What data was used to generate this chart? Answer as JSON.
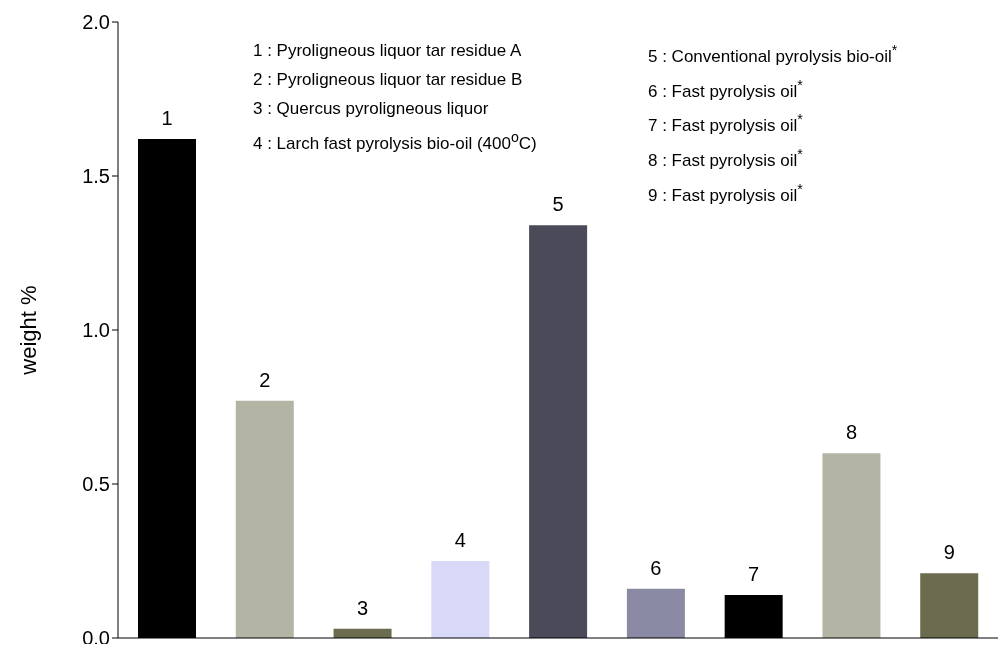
{
  "chart_data": {
    "type": "bar",
    "ylabel": "weight %",
    "categories": [
      "1",
      "2",
      "3",
      "4",
      "5",
      "6",
      "7",
      "8",
      "9"
    ],
    "values": [
      1.62,
      0.77,
      0.03,
      0.25,
      1.34,
      0.16,
      0.14,
      0.6,
      0.21
    ],
    "colors": [
      "#000000",
      "#b4b4a4",
      "#6b6b50",
      "#d8d8f8",
      "#4a4a58",
      "#8a8aa4",
      "#000000",
      "#b4b4a4",
      "#6b6b50"
    ],
    "ylim": [
      0,
      2.0
    ],
    "yticks": [
      {
        "value": 0,
        "label": "0.0"
      },
      0.5,
      {
        "value": 1,
        "label": "1.0"
      },
      1.5,
      {
        "value": 2,
        "label": "2.0"
      }
    ],
    "annotations": [
      "1 : Pyroligneous liquor tar residue A",
      "2 : Pyroligneous liquor tar residue B",
      "3 : Quercus pyroligneous liquor",
      "4 : Larch fast pyrolysis bio-oil (400$^{o}$C)",
      "5 : Conventional pyrolysis bio-oil$^{*}$",
      "6 : Fast pyrolysis oil$^{*}$",
      "7 : Fast pyrolysis oil$^{*}$",
      "8 : Fast pyrolysis oil$^{*}$",
      "9 : Fast pyrolysis oil$^{*}$"
    ]
  }
}
